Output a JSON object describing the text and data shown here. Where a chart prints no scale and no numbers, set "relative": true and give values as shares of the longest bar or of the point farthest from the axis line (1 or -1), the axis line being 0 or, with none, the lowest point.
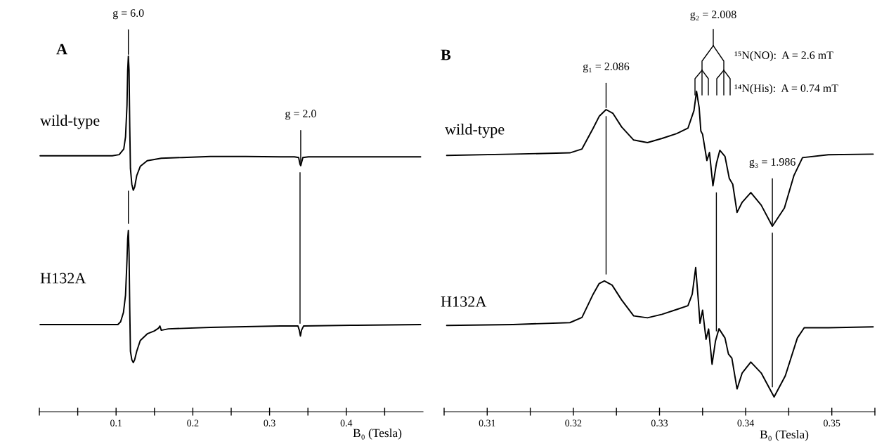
{
  "chart_data": [
    {
      "type": "line",
      "relative": true,
      "xlim": [
        0,
        0.5
      ],
      "tick_labels": "x",
      "xlabel": "B₀ (Tesla)",
      "xticks": [
        {
          "value": 0,
          "label": null
        },
        {
          "value": 0.05,
          "label": null
        },
        0.1,
        {
          "value": 0.15,
          "label": null
        },
        0.2,
        {
          "value": 0.25,
          "label": null
        },
        0.3,
        {
          "value": 0.35,
          "label": null
        },
        0.4,
        {
          "value": 0.45,
          "label": null
        }
      ],
      "series": [
        {
          "name": "wild-type",
          "color": "#000000",
          "x": [
            0.001,
            0.095,
            0.104,
            0.11,
            0.1123,
            0.1142,
            0.1151,
            0.116,
            0.1169,
            0.1178,
            0.1187,
            0.1205,
            0.1224,
            0.1242,
            0.1269,
            0.1315,
            0.1406,
            0.1589,
            0.1863,
            0.2228,
            0.2685,
            0.3142,
            0.3324,
            0.3379,
            0.3397,
            0.3406,
            0.3416,
            0.3434,
            0.3507,
            0.4055,
            0.4968
          ],
          "values": [
            0.72,
            0.72,
            0.723,
            0.739,
            0.773,
            0.862,
            0.96,
            1,
            0.96,
            0.802,
            0.684,
            0.64,
            0.623,
            0.632,
            0.664,
            0.69,
            0.706,
            0.713,
            0.715,
            0.718,
            0.718,
            0.717,
            0.717,
            0.715,
            0.696,
            0.692,
            0.7,
            0.715,
            0.717,
            0.717,
            0.717
          ]
        },
        {
          "name": "H132A",
          "color": "#000000",
          "x": [
            0.001,
            0.1023,
            0.1059,
            0.1096,
            0.1123,
            0.1142,
            0.1151,
            0.116,
            0.1169,
            0.1178,
            0.1187,
            0.1205,
            0.1224,
            0.1242,
            0.1269,
            0.1315,
            0.1406,
            0.1498,
            0.1553,
            0.1571,
            0.1589,
            0.168,
            0.2228,
            0.3142,
            0.337,
            0.3388,
            0.3402,
            0.3416,
            0.3443,
            0.4055,
            0.4968
          ],
          "values": [
            0.245,
            0.245,
            0.253,
            0.279,
            0.328,
            0.427,
            0.486,
            0.51,
            0.447,
            0.289,
            0.17,
            0.146,
            0.138,
            0.146,
            0.17,
            0.2,
            0.219,
            0.227,
            0.235,
            0.241,
            0.229,
            0.233,
            0.237,
            0.241,
            0.241,
            0.229,
            0.213,
            0.229,
            0.241,
            0.243,
            0.245
          ]
        }
      ],
      "annotations": [
        "A",
        {
          "text": "g = 6.0",
          "x": 0.116,
          "y": 1
        },
        {
          "text": "g = 2.0",
          "x": 0.3406,
          "y": 0.692
        }
      ],
      "ref_lines": [
        {
          "axis": "x",
          "value": 0.116
        },
        {
          "axis": "x",
          "value": 0.3397
        }
      ]
    },
    {
      "type": "line",
      "relative": true,
      "xlim": [
        0.305,
        0.355
      ],
      "tick_labels": "x",
      "xlabel": "B₀ (Tesla)",
      "xticks": [
        {
          "value": 0.305,
          "label": null
        },
        0.31,
        {
          "value": 0.315,
          "label": null
        },
        0.32,
        {
          "value": 0.325,
          "label": null
        },
        0.33,
        {
          "value": 0.335,
          "label": null
        },
        0.34,
        {
          "value": 0.345,
          "label": null
        },
        0.35,
        {
          "value": 0.355,
          "label": null
        }
      ],
      "series": [
        {
          "name": "wild-type",
          "color": "#000000",
          "x": [
            0.3053,
            0.313,
            0.3196,
            0.321,
            0.3223,
            0.323,
            0.3238,
            0.3246,
            0.3256,
            0.327,
            0.3286,
            0.3303,
            0.332,
            0.3333,
            0.334,
            0.3343,
            0.3346,
            0.3348,
            0.335,
            0.3355,
            0.3358,
            0.3362,
            0.3366,
            0.337,
            0.3376,
            0.3381,
            0.3385,
            0.339,
            0.3396,
            0.3406,
            0.3418,
            0.3431,
            0.3445,
            0.3456,
            0.3466,
            0.3496,
            0.3548
          ],
          "values": [
            0.8,
            0.804,
            0.808,
            0.82,
            0.885,
            0.922,
            0.943,
            0.931,
            0.889,
            0.848,
            0.84,
            0.853,
            0.868,
            0.885,
            0.94,
            1,
            0.95,
            0.876,
            0.866,
            0.784,
            0.809,
            0.705,
            0.774,
            0.816,
            0.797,
            0.728,
            0.71,
            0.622,
            0.654,
            0.684,
            0.645,
            0.579,
            0.636,
            0.737,
            0.793,
            0.802,
            0.804
          ]
        },
        {
          "name": "H132A",
          "color": "#000000",
          "x": [
            0.3053,
            0.313,
            0.3196,
            0.321,
            0.3223,
            0.323,
            0.3236,
            0.3245,
            0.3256,
            0.327,
            0.3286,
            0.3303,
            0.332,
            0.3333,
            0.3338,
            0.3342,
            0.3345,
            0.3347,
            0.335,
            0.3354,
            0.3357,
            0.3361,
            0.3365,
            0.3369,
            0.3376,
            0.338,
            0.3384,
            0.339,
            0.3396,
            0.3406,
            0.3418,
            0.3433,
            0.3446,
            0.346,
            0.3468,
            0.3496,
            0.3548
          ],
          "values": [
            0.269,
            0.272,
            0.278,
            0.294,
            0.367,
            0.4,
            0.408,
            0.395,
            0.349,
            0.299,
            0.293,
            0.304,
            0.319,
            0.331,
            0.367,
            0.45,
            0.349,
            0.276,
            0.317,
            0.226,
            0.258,
            0.148,
            0.221,
            0.259,
            0.23,
            0.18,
            0.167,
            0.071,
            0.121,
            0.155,
            0.121,
            0.046,
            0.112,
            0.23,
            0.262,
            0.262,
            0.265
          ]
        }
      ],
      "annotations": [
        "B",
        {
          "text": "g₁ = 2.086",
          "x": 0.3238,
          "y": 0.943
        },
        "g₂ = 2.008",
        {
          "text": "g₃ = 1.986",
          "x": 0.3431,
          "y": 0.579
        },
        "¹⁵N(NO):  A = 2.6 mT",
        "¹⁴N(His):  A = 0.74 mT"
      ],
      "ref_lines": [
        {
          "axis": "x",
          "value": 0.3238
        },
        {
          "axis": "x",
          "value": 0.3366
        },
        {
          "axis": "x",
          "value": 0.3431
        }
      ]
    }
  ]
}
